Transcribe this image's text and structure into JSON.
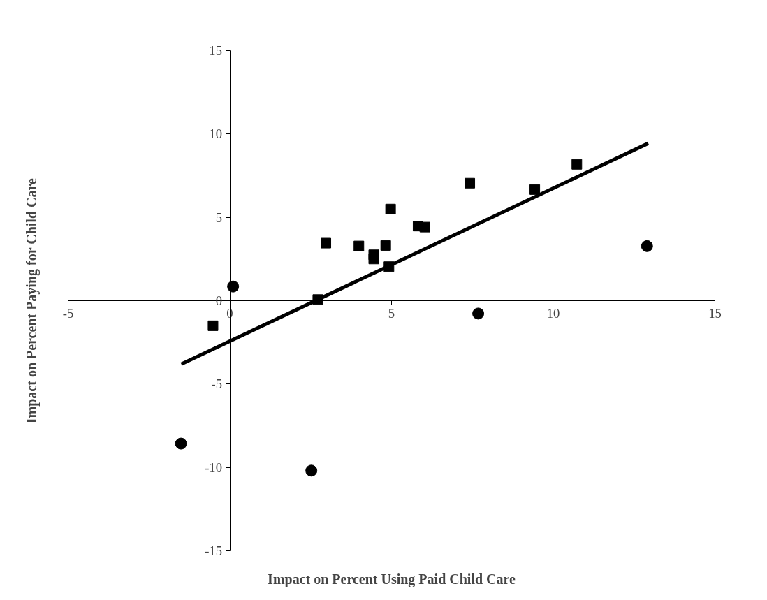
{
  "chart_data": {
    "type": "scatter",
    "xlabel": "Impact on Percent Using Paid Child Care",
    "ylabel": "Impact on Percent Paying for Child Care",
    "xlim": [
      -5,
      15
    ],
    "ylim": [
      -15,
      15
    ],
    "xticks": [
      -5,
      0,
      5,
      10,
      15
    ],
    "yticks": [
      -15,
      -10,
      -5,
      0,
      5,
      10,
      15
    ],
    "grid": false,
    "series": [
      {
        "marker": "square",
        "color": "#000000",
        "x": [
          -0.52,
          2.72,
          2.97,
          3.99,
          4.45,
          4.45,
          4.82,
          4.92,
          4.97,
          5.82,
          6.03,
          7.42,
          9.43,
          10.73
        ],
        "values": [
          -1.5,
          0.07,
          3.45,
          3.28,
          2.75,
          2.5,
          3.31,
          2.04,
          5.49,
          4.47,
          4.41,
          7.04,
          6.66,
          8.17
        ]
      },
      {
        "marker": "circle",
        "color": "#000000",
        "x": [
          -1.51,
          0.1,
          2.52,
          7.68,
          12.9
        ],
        "values": [
          -8.56,
          0.85,
          -10.18,
          -0.77,
          3.27
        ]
      },
      {
        "type": "line",
        "marker": "none",
        "line_style": "solid",
        "color": "#000000",
        "x": [
          -1.5,
          12.94
        ],
        "values": [
          -3.8,
          9.43
        ]
      }
    ]
  }
}
